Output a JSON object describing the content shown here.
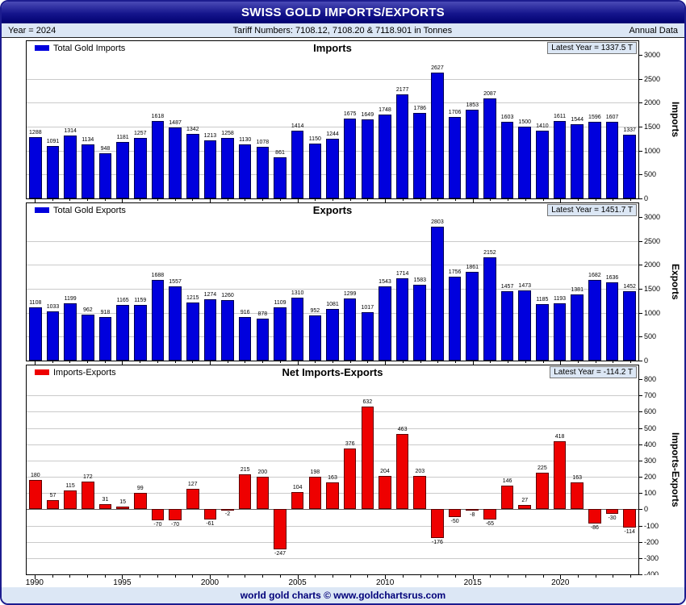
{
  "header": {
    "title": "SWISS GOLD IMPORTS/EXPORTS",
    "year_label": "Year = 2024",
    "tariff_label": "Tariff Numbers: 7108.12, 7108.20 & 7118.901 in Tonnes",
    "frequency_label": "Annual Data"
  },
  "footer": {
    "text": "world gold charts © www.goldchartsrus.com"
  },
  "x_axis": {
    "tick_labels": [
      1990,
      1995,
      2000,
      2005,
      2010,
      2015,
      2020
    ]
  },
  "chart_data": [
    {
      "type": "bar",
      "key": "imports",
      "title": "Imports",
      "legend": "Total Gold Imports",
      "latest_label": "Latest Year = 1337.5 T",
      "ylabel": "Imports",
      "color": "#0000DD",
      "edge_color": "#000050",
      "ylim": [
        0,
        3000
      ],
      "ytick_step": 500,
      "x": [
        1990,
        1991,
        1992,
        1993,
        1994,
        1995,
        1996,
        1997,
        1998,
        1999,
        2000,
        2001,
        2002,
        2003,
        2004,
        2005,
        2006,
        2007,
        2008,
        2009,
        2010,
        2011,
        2012,
        2013,
        2014,
        2015,
        2016,
        2017,
        2018,
        2019,
        2020,
        2021,
        2022,
        2023,
        2024
      ],
      "values": [
        1288,
        1091,
        1314,
        1134,
        948,
        1181,
        1257,
        1618,
        1487,
        1342,
        1213,
        1258,
        1130,
        1078,
        861,
        1414,
        1150,
        1244,
        1675,
        1649,
        1748,
        2177,
        1786,
        2627,
        1706,
        1853,
        2087,
        1603,
        1500,
        1410,
        1611,
        1544,
        1596,
        1607,
        1337
      ]
    },
    {
      "type": "bar",
      "key": "exports",
      "title": "Exports",
      "legend": "Total Gold Exports",
      "latest_label": "Latest Year = 1451.7 T",
      "ylabel": "Exports",
      "color": "#0000DD",
      "edge_color": "#000050",
      "ylim": [
        0,
        3000
      ],
      "ytick_step": 500,
      "x": [
        1990,
        1991,
        1992,
        1993,
        1994,
        1995,
        1996,
        1997,
        1998,
        1999,
        2000,
        2001,
        2002,
        2003,
        2004,
        2005,
        2006,
        2007,
        2008,
        2009,
        2010,
        2011,
        2012,
        2013,
        2014,
        2015,
        2016,
        2017,
        2018,
        2019,
        2020,
        2021,
        2022,
        2023,
        2024
      ],
      "values": [
        1108,
        1033,
        1199,
        962,
        918,
        1165,
        1159,
        1688,
        1557,
        1215,
        1274,
        1260,
        916,
        878,
        1109,
        1310,
        952,
        1081,
        1299,
        1017,
        1543,
        1714,
        1583,
        2803,
        1756,
        1861,
        2152,
        1457,
        1473,
        1185,
        1193,
        1381,
        1682,
        1636,
        1452
      ]
    },
    {
      "type": "bar",
      "key": "net",
      "title": "Net Imports-Exports",
      "legend": "Imports-Exports",
      "latest_label": "Latest Year = -114.2 T",
      "ylabel": "Imports-Exports",
      "color": "#EE0000",
      "edge_color": "#600000",
      "ylim": [
        -400,
        800
      ],
      "ytick_step": 100,
      "x": [
        1990,
        1991,
        1992,
        1993,
        1994,
        1995,
        1996,
        1997,
        1998,
        1999,
        2000,
        2001,
        2002,
        2003,
        2004,
        2005,
        2006,
        2007,
        2008,
        2009,
        2010,
        2011,
        2012,
        2013,
        2014,
        2015,
        2016,
        2017,
        2018,
        2019,
        2020,
        2021,
        2022,
        2023,
        2024
      ],
      "values": [
        180,
        57,
        115,
        172,
        31,
        15,
        99,
        -70,
        -70,
        127,
        -61,
        -2,
        215,
        200,
        -247,
        104,
        198,
        163,
        376,
        632,
        204,
        463,
        203,
        -176,
        -50,
        -8,
        -65,
        146,
        27,
        225,
        418,
        163,
        -86,
        -30,
        -114
      ]
    }
  ]
}
